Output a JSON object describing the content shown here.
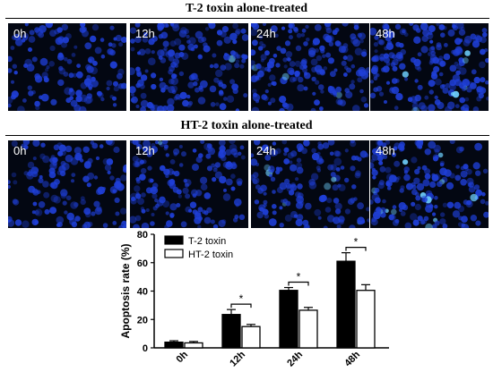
{
  "sections": [
    {
      "title": "T-2 toxin alone-treated",
      "panels": [
        {
          "label": "0h",
          "density": 0.55,
          "bright": 0.0
        },
        {
          "label": "12h",
          "density": 0.8,
          "bright": 0.02
        },
        {
          "label": "24h",
          "density": 0.9,
          "bright": 0.03
        },
        {
          "label": "48h",
          "density": 1.0,
          "bright": 0.05
        }
      ]
    },
    {
      "title": "HT-2 toxin alone-treated",
      "panels": [
        {
          "label": "0h",
          "density": 0.6,
          "bright": 0.0
        },
        {
          "label": "12h",
          "density": 0.75,
          "bright": 0.02
        },
        {
          "label": "24h",
          "density": 0.7,
          "bright": 0.04
        },
        {
          "label": "48h",
          "density": 0.85,
          "bright": 0.08
        }
      ]
    }
  ],
  "colors": {
    "panel_bg": "#030712",
    "nucleus": "#1f3fd8",
    "nucleus_bright": "#6fd0ff",
    "bar_t2": "#000000",
    "bar_ht2": "#ffffff"
  },
  "chart_data": {
    "type": "bar",
    "categories": [
      "0h",
      "12h",
      "24h",
      "48h"
    ],
    "series": [
      {
        "name": "T-2 toxin",
        "values": [
          4,
          23.5,
          40.5,
          61
        ],
        "errors": [
          1,
          3.5,
          2,
          6
        ]
      },
      {
        "name": "HT-2 toxin",
        "values": [
          3.5,
          15,
          26.5,
          40.5
        ],
        "errors": [
          1,
          1.5,
          2,
          4
        ]
      }
    ],
    "significance": [
      "",
      "*",
      "*",
      "*"
    ],
    "title": "",
    "xlabel": "",
    "ylabel": "Apoptosis rate (%)",
    "ylim": [
      0,
      80
    ],
    "yticks": [
      0,
      20,
      40,
      60,
      80
    ],
    "legend_position": "top-left",
    "grid": false
  }
}
